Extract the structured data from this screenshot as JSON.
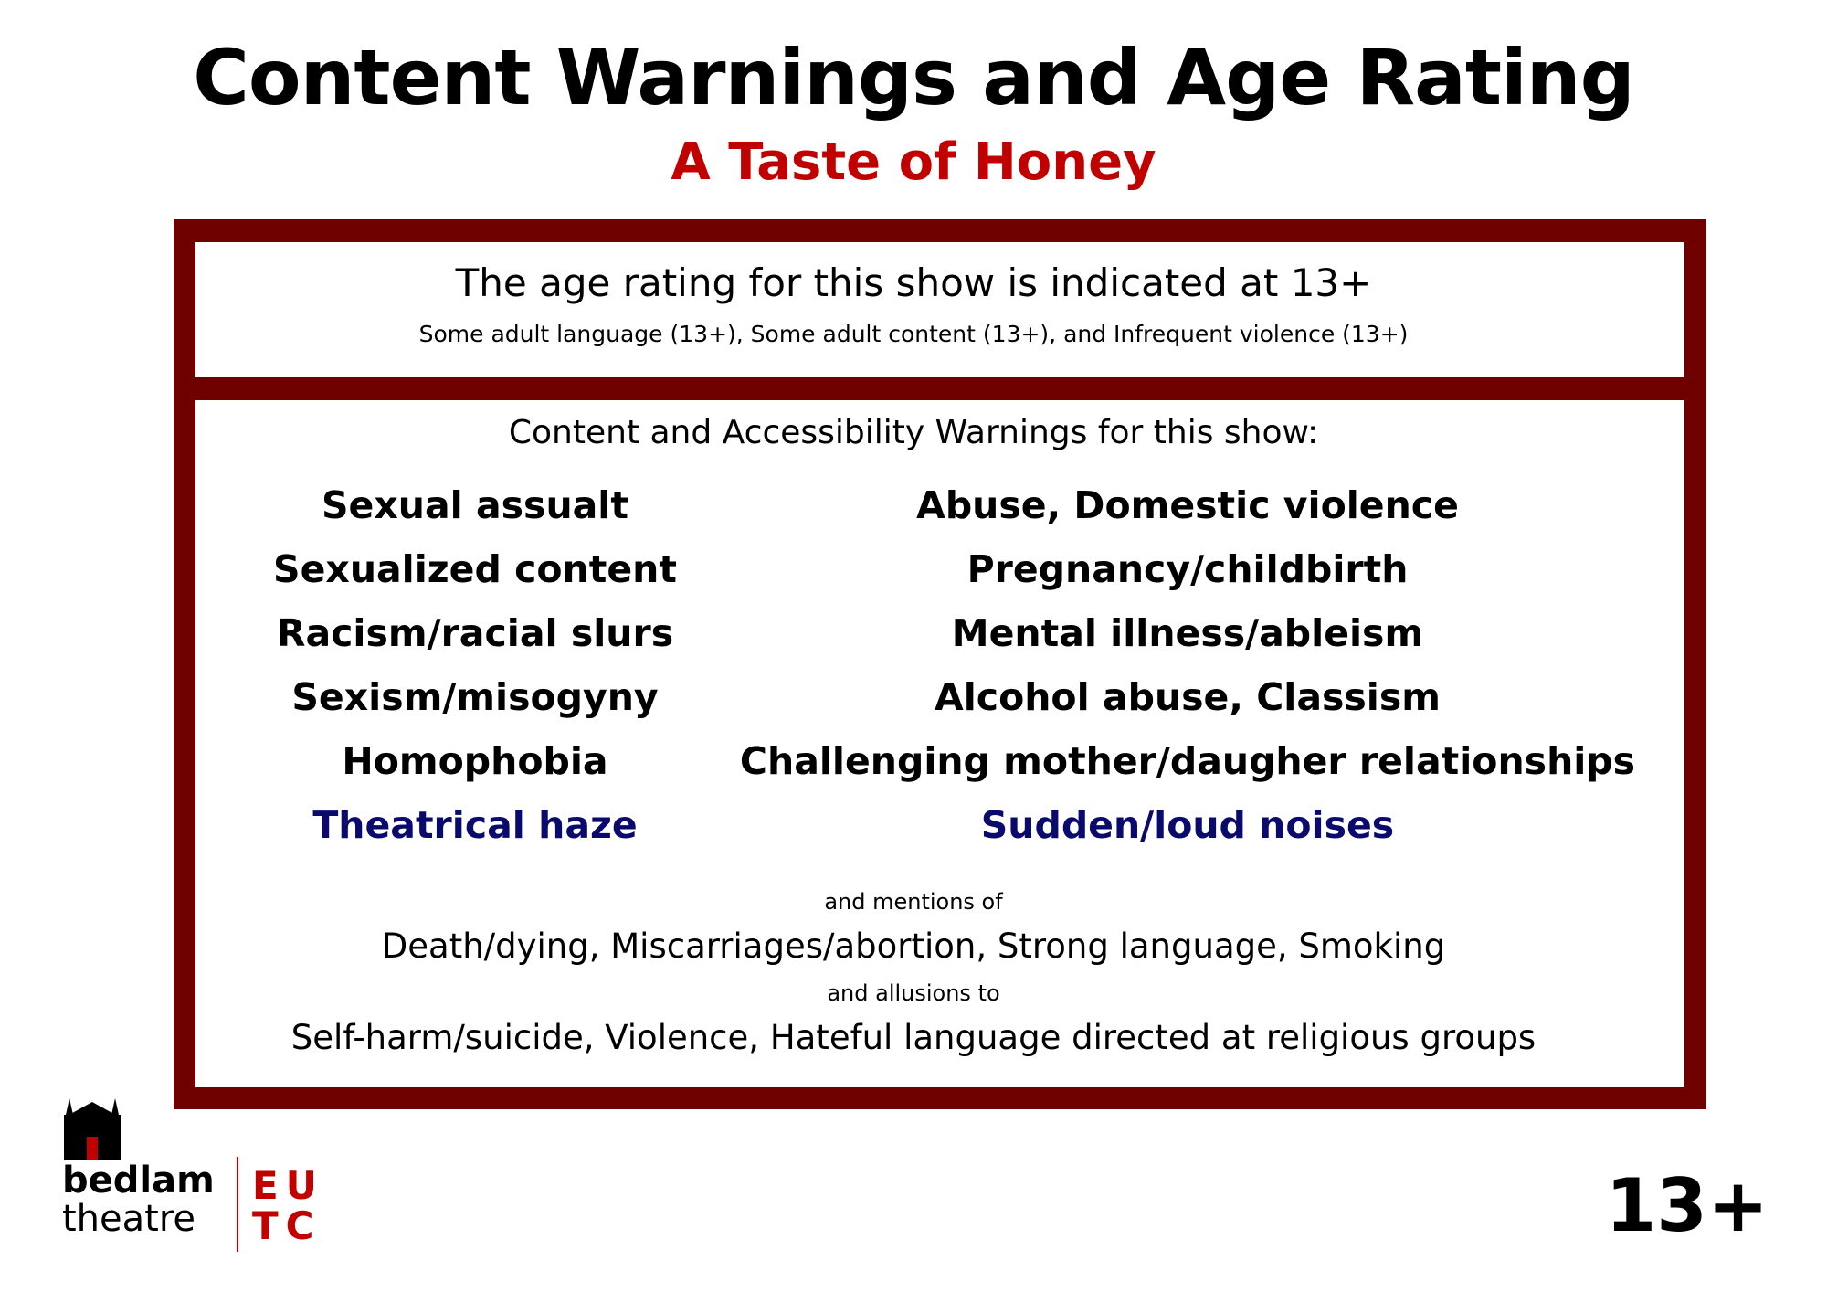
{
  "header": {
    "title": "Content Warnings and Age Rating",
    "subtitle": "A Taste of Honey"
  },
  "age_box": {
    "headline": "The age rating for this show is indicated at 13+",
    "detail": "Some adult language (13+), Some adult content (13+), and Infrequent violence (13+)"
  },
  "warnings": {
    "heading": "Content and Accessibility Warnings for this show:",
    "left_column": [
      "Sexual assualt",
      "Sexualized content",
      "Racism/racial slurs",
      "Sexism/misogyny",
      "Homophobia",
      "Theatrical haze"
    ],
    "right_column": [
      "Abuse, Domestic violence",
      "Pregnancy/childbirth",
      "Mental illness/ableism",
      "Alcohol abuse, Classism",
      "Challenging mother/daugher relationships",
      "Sudden/loud noises"
    ],
    "mentions_label": "and mentions of",
    "mentions": "Death/dying, Miscarriages/abortion, Strong language, Smoking",
    "allusions_label": "and allusions to",
    "allusions": "Self-harm/suicide, Violence, Hateful language directed at religious groups"
  },
  "footer": {
    "logo_line1": "bedlam",
    "logo_line2": "theatre",
    "eutc_line1": "EU",
    "eutc_line2": "TC",
    "rating": "13+"
  },
  "colors": {
    "accent_red": "#c10000",
    "frame": "#6f0000",
    "accessibility_blue": "#0a0a6e"
  }
}
